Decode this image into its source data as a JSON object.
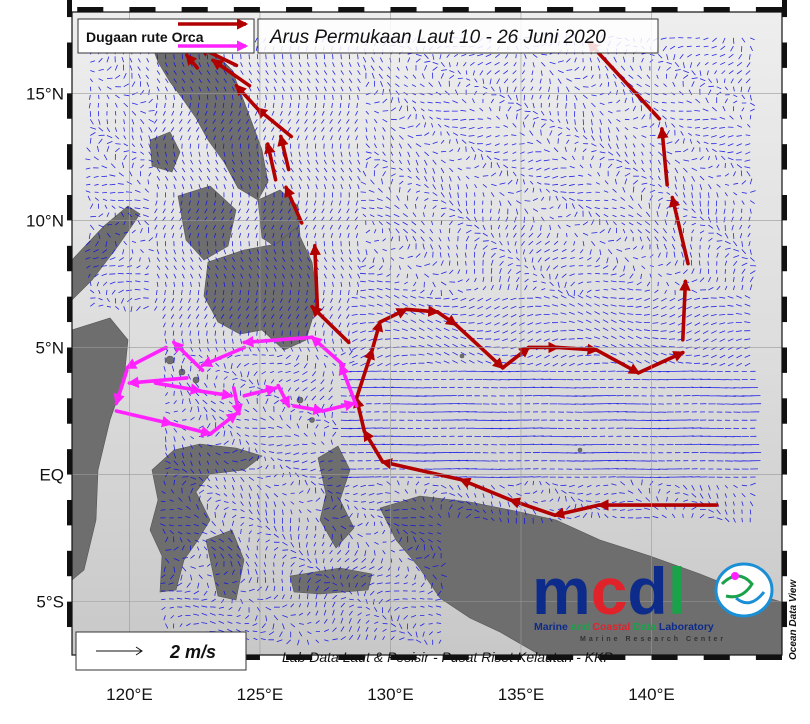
{
  "map": {
    "title": "Arus Permukaan Laut 10 - 26 Juni 2020",
    "legend_label": "Dugaan rute Orca",
    "scale_label": "2 m/s",
    "credit": "Lab Data Laut & Pesisir - Pusat Riset Kelautan - KKP",
    "software_label": "Ocean Data View",
    "lat_labels": [
      "15°N",
      "10°N",
      "5°N",
      "EQ",
      "5°S"
    ],
    "lon_labels": [
      "120°E",
      "125°E",
      "130°E",
      "135°E",
      "140°E"
    ],
    "lat_values": [
      15,
      10,
      5,
      0,
      -5
    ],
    "lon_values": [
      120,
      125,
      130,
      135,
      140
    ],
    "extent": {
      "lon": [
        117.8,
        145
      ],
      "lat": [
        -7.1,
        18.2
      ]
    },
    "colors": {
      "land": "#6e6e6e",
      "ocean_light": "#f2f2f2",
      "ocean_dark": "#c9c9c9",
      "current_vectors": "#1010e6",
      "route_red": "#b20000",
      "route_magenta": "#ff22ff"
    }
  },
  "logo": {
    "letters": [
      "m",
      "c",
      "d",
      "l"
    ],
    "letter_colors": [
      "#0d2b8a",
      "#e0232b",
      "#0d2b8a",
      "#1aa24a"
    ],
    "line1": [
      "Marine",
      "and",
      "Coastal",
      "Data",
      "Laboratory"
    ],
    "line1_colors": [
      "#0d2b8a",
      "#1aa24a",
      "#e0232b",
      "#1aa24a",
      "#0d2b8a"
    ],
    "line2": "Marine Research Center"
  },
  "route_red": [
    [
      [
        142.5,
        -1.2
      ],
      [
        138.0,
        -1.2
      ]
    ],
    [
      [
        138.0,
        -1.2
      ],
      [
        136.3,
        -1.6
      ]
    ],
    [
      [
        136.3,
        -1.6
      ],
      [
        134.6,
        -1.0
      ]
    ],
    [
      [
        134.6,
        -1.0
      ],
      [
        132.7,
        -0.2
      ]
    ],
    [
      [
        132.7,
        -0.2
      ],
      [
        129.7,
        0.5
      ]
    ],
    [
      [
        129.7,
        0.5
      ],
      [
        129.0,
        1.7
      ]
    ],
    [
      [
        129.0,
        1.7
      ],
      [
        128.7,
        3.0
      ]
    ],
    [
      [
        128.7,
        3.0
      ],
      [
        129.3,
        4.9
      ]
    ],
    [
      [
        129.3,
        4.9
      ],
      [
        129.6,
        6.0
      ]
    ],
    [
      [
        129.6,
        6.0
      ],
      [
        130.6,
        6.5
      ]
    ],
    [
      [
        130.6,
        6.5
      ],
      [
        131.8,
        6.4
      ]
    ],
    [
      [
        131.8,
        6.4
      ],
      [
        132.5,
        5.9
      ]
    ],
    [
      [
        132.5,
        5.9
      ],
      [
        134.3,
        4.2
      ]
    ],
    [
      [
        134.3,
        4.2
      ],
      [
        135.3,
        5.0
      ]
    ],
    [
      [
        135.3,
        5.0
      ],
      [
        136.4,
        5.0
      ]
    ],
    [
      [
        136.4,
        5.0
      ],
      [
        137.9,
        4.9
      ]
    ],
    [
      [
        137.9,
        4.9
      ],
      [
        139.5,
        4.0
      ]
    ],
    [
      [
        139.5,
        4.0
      ],
      [
        141.2,
        4.8
      ]
    ],
    [
      [
        141.2,
        5.3
      ],
      [
        141.3,
        7.6
      ]
    ],
    [
      [
        141.4,
        8.3
      ],
      [
        140.8,
        10.9
      ]
    ],
    [
      [
        140.6,
        11.4
      ],
      [
        140.4,
        13.6
      ]
    ],
    [
      [
        140.3,
        14.0
      ],
      [
        137.6,
        17.0
      ]
    ],
    [
      [
        128.4,
        5.2
      ],
      [
        127.0,
        6.6
      ]
    ],
    [
      [
        127.2,
        6.6
      ],
      [
        127.1,
        9.0
      ]
    ],
    [
      [
        126.6,
        9.9
      ],
      [
        126.0,
        11.3
      ]
    ],
    [
      [
        125.6,
        11.6
      ],
      [
        125.3,
        13.0
      ]
    ],
    [
      [
        126.1,
        12.0
      ],
      [
        125.8,
        13.3
      ]
    ],
    [
      [
        126.2,
        13.3
      ],
      [
        124.9,
        14.4
      ]
    ],
    [
      [
        124.9,
        14.4
      ],
      [
        124.1,
        15.3
      ]
    ],
    [
      [
        124.6,
        15.3
      ],
      [
        123.2,
        16.3
      ]
    ],
    [
      [
        124.1,
        16.1
      ],
      [
        122.7,
        16.8
      ]
    ],
    [
      [
        122.6,
        16.0
      ],
      [
        122.2,
        16.5
      ]
    ]
  ],
  "route_magenta": [
    [
      [
        128.7,
        2.7
      ],
      [
        128.1,
        4.3
      ]
    ],
    [
      [
        128.2,
        4.3
      ],
      [
        127.0,
        5.4
      ]
    ],
    [
      [
        127.0,
        5.4
      ],
      [
        124.4,
        5.2
      ]
    ],
    [
      [
        124.4,
        5.0
      ],
      [
        122.8,
        4.3
      ]
    ],
    [
      [
        122.8,
        4.1
      ],
      [
        121.7,
        5.2
      ]
    ],
    [
      [
        121.4,
        5.0
      ],
      [
        119.9,
        4.2
      ]
    ],
    [
      [
        119.9,
        4.1
      ],
      [
        119.5,
        2.8
      ]
    ],
    [
      [
        119.5,
        2.5
      ],
      [
        121.6,
        2.0
      ]
    ],
    [
      [
        121.6,
        2.0
      ],
      [
        123.1,
        1.6
      ]
    ],
    [
      [
        123.1,
        1.6
      ],
      [
        124.1,
        2.4
      ]
    ],
    [
      [
        121.0,
        3.6
      ],
      [
        122.7,
        3.3
      ]
    ],
    [
      [
        122.6,
        3.3
      ],
      [
        123.9,
        3.1
      ]
    ],
    [
      [
        124.4,
        3.1
      ],
      [
        125.6,
        3.4
      ]
    ],
    [
      [
        125.7,
        3.5
      ],
      [
        126.1,
        2.7
      ]
    ],
    [
      [
        126.3,
        2.7
      ],
      [
        127.4,
        2.5
      ]
    ],
    [
      [
        127.4,
        2.5
      ],
      [
        128.6,
        2.8
      ]
    ],
    [
      [
        122.2,
        3.8
      ],
      [
        120.0,
        3.6
      ]
    ],
    [
      [
        124.0,
        3.4
      ],
      [
        124.2,
        2.4
      ]
    ]
  ],
  "legend_routes": [
    "route_red",
    "route_magenta"
  ]
}
